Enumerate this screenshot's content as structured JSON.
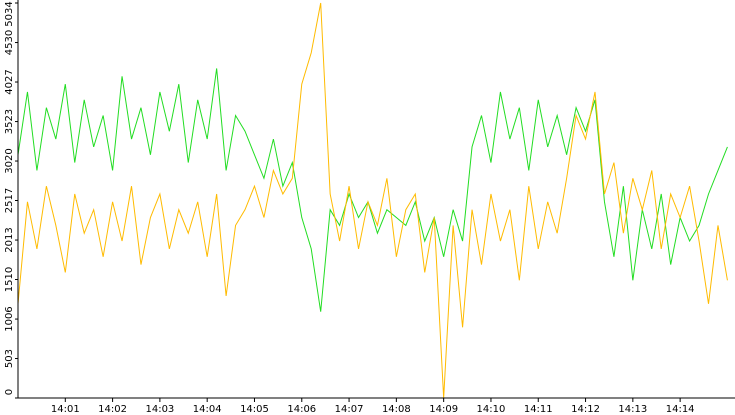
{
  "chart_data": {
    "type": "line",
    "x": [
      0,
      0.2,
      0.4,
      0.6,
      0.8,
      1,
      1.2,
      1.4,
      1.6,
      1.8,
      2,
      2.2,
      2.4,
      2.6,
      2.8,
      3,
      3.2,
      3.4,
      3.6,
      3.8,
      4,
      4.2,
      4.4,
      4.6,
      4.8,
      5,
      5.2,
      5.4,
      5.6,
      5.8,
      6,
      6.2,
      6.4,
      6.6,
      6.8,
      7,
      7.2,
      7.4,
      7.6,
      7.8,
      8,
      8.2,
      8.4,
      8.6,
      8.8,
      9,
      9.2,
      9.4,
      9.6,
      9.8,
      10,
      10.2,
      10.4,
      10.6,
      10.8,
      11,
      11.2,
      11.4,
      11.6,
      11.8,
      12,
      12.2,
      12.4,
      12.6,
      12.8,
      13,
      13.2,
      13.4,
      13.6,
      13.8,
      14,
      14.2,
      14.4,
      14.6,
      14.8,
      15
    ],
    "series": [
      {
        "color": "#22dd22",
        "values": [
          3100,
          3900,
          2900,
          3700,
          3300,
          4000,
          3000,
          3800,
          3200,
          3600,
          2900,
          4100,
          3300,
          3700,
          3100,
          3900,
          3400,
          4000,
          3000,
          3800,
          3300,
          4200,
          2900,
          3600,
          3400,
          3100,
          2800,
          3300,
          2700,
          3000,
          2300,
          1900,
          1100,
          2400,
          2200,
          2600,
          2300,
          2500,
          2100,
          2400,
          2300,
          2200,
          2500,
          2000,
          2300,
          1800,
          2400,
          2000,
          3200,
          3600,
          3000,
          3900,
          3300,
          3700,
          2900,
          3800,
          3200,
          3600,
          3100,
          3700,
          3400,
          3800,
          2500,
          1800,
          2700,
          1500,
          2400,
          1900,
          2600,
          1700,
          2300,
          2000,
          2200,
          2600,
          2900,
          3200
        ]
      },
      {
        "color": "#ffbb00",
        "values": [
          1200,
          2500,
          1900,
          2700,
          2200,
          1600,
          2600,
          2100,
          2400,
          1800,
          2500,
          2000,
          2700,
          1700,
          2300,
          2600,
          1900,
          2400,
          2100,
          2500,
          1800,
          2600,
          1300,
          2200,
          2400,
          2700,
          2300,
          2900,
          2600,
          2800,
          4000,
          4400,
          5034,
          2600,
          2000,
          2700,
          1900,
          2500,
          2200,
          2800,
          1800,
          2400,
          2600,
          1600,
          2300,
          0,
          2200,
          900,
          2400,
          1700,
          2600,
          2000,
          2400,
          1500,
          2700,
          1900,
          2500,
          2100,
          2800,
          3600,
          3300,
          3900,
          2600,
          3000,
          2100,
          2800,
          2400,
          2900,
          1900,
          2600,
          2300,
          2700,
          2000,
          1200,
          2200,
          1500
        ]
      }
    ],
    "xlim": [
      0,
      15.16
    ],
    "xticks": [
      {
        "value": 1,
        "label": "14:01"
      },
      {
        "value": 2,
        "label": "14:02"
      },
      {
        "value": 3,
        "label": "14:03"
      },
      {
        "value": 4,
        "label": "14:04"
      },
      {
        "value": 5,
        "label": "14:05"
      },
      {
        "value": 6,
        "label": "14:06"
      },
      {
        "value": 7,
        "label": "14:07"
      },
      {
        "value": 8,
        "label": "14:08"
      },
      {
        "value": 9,
        "label": "14:09"
      },
      {
        "value": 10,
        "label": "14:10"
      },
      {
        "value": 11,
        "label": "14:11"
      },
      {
        "value": 12,
        "label": "14:12"
      },
      {
        "value": 13,
        "label": "14:13"
      },
      {
        "value": 14,
        "label": "14:14"
      }
    ],
    "ylim": [
      0,
      5034
    ],
    "yticks": [
      0,
      503,
      1006,
      1510,
      2013,
      2517,
      3020,
      3523,
      4027,
      4530,
      5034
    ]
  }
}
